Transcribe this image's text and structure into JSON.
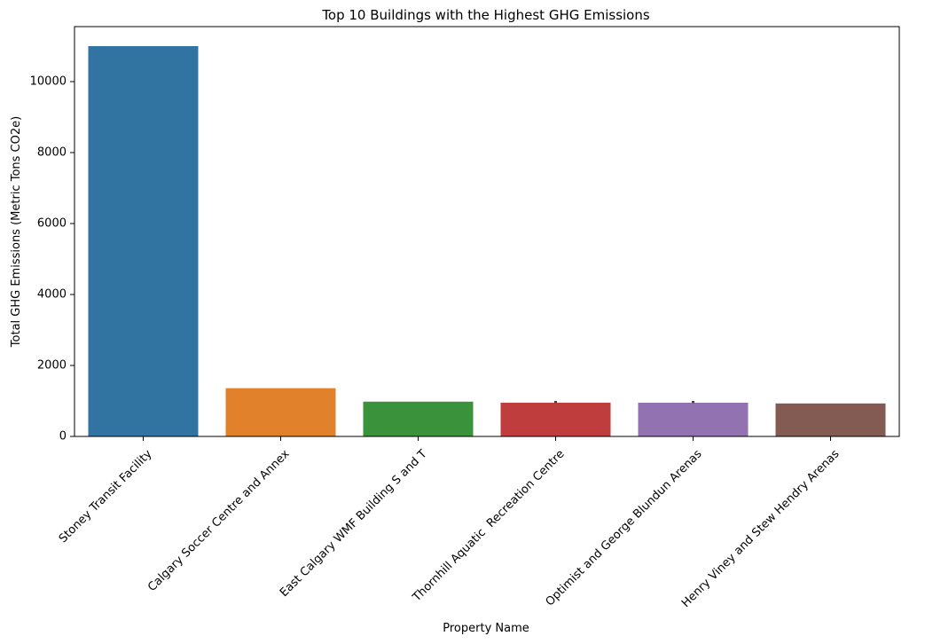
{
  "chart_data": {
    "type": "bar",
    "title": "Top 10 Buildings with the Highest GHG Emissions",
    "xlabel": "Property Name",
    "ylabel": "Total GHG Emissions (Metric Tons CO2e)",
    "categories": [
      "Stoney Transit Facility",
      "Calgary Soccer Centre and Annex",
      "East Calgary WMF Building S and T",
      "Thornhill Aquatic  Recreation Centre",
      "Optimist and George Blundun Arenas",
      "Henry Viney and Stew Hendry Arenas"
    ],
    "values": [
      11000,
      1360,
      980,
      950,
      950,
      930
    ],
    "error_bars": [
      null,
      null,
      null,
      [
        940,
        1000
      ],
      [
        940,
        1000
      ],
      null
    ],
    "colors": [
      "#3274a1",
      "#e1812c",
      "#3a923a",
      "#c03d3e",
      "#9372b2",
      "#845b53"
    ],
    "ylim": [
      0,
      11550
    ],
    "yticks": [
      0,
      2000,
      4000,
      6000,
      8000,
      10000
    ],
    "grid": false,
    "legend": "none"
  }
}
